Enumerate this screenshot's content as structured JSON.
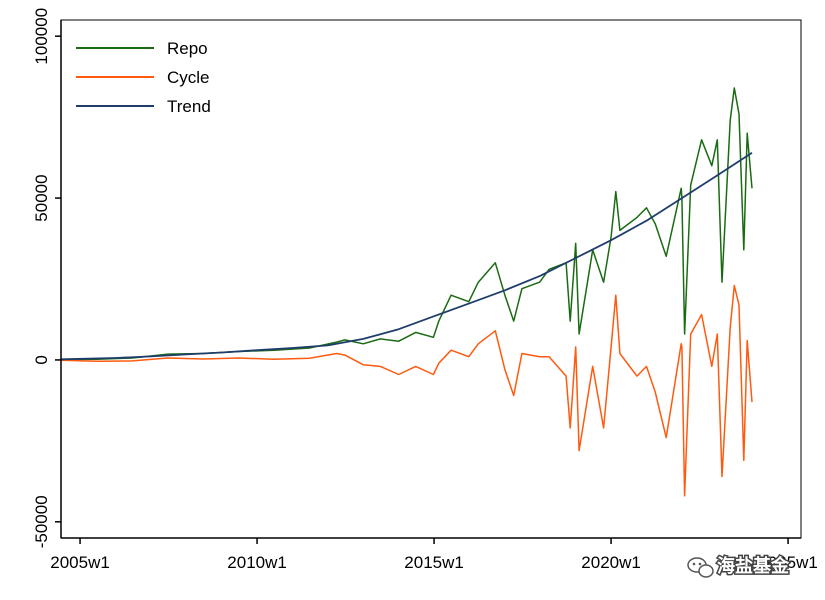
{
  "chart_data": {
    "type": "line",
    "title": "",
    "xlabel": "",
    "ylabel": "",
    "x_ticks": [
      "2005w1",
      "2010w1",
      "2015w1",
      "2020w1",
      "2025w1"
    ],
    "y_ticks": [
      "-50000",
      "0",
      "50000",
      "100000"
    ],
    "xlim": [
      "2004w25",
      "2025w20"
    ],
    "ylim": [
      -55000,
      105000
    ],
    "grid": false,
    "legend_position": "top-left",
    "series": [
      {
        "name": "Repo",
        "color": "#1a6b12",
        "points": [
          [
            "2004w25",
            100
          ],
          [
            "2005w26",
            200
          ],
          [
            "2006w26",
            600
          ],
          [
            "2007w26",
            1800
          ],
          [
            "2008w26",
            2000
          ],
          [
            "2009w26",
            2600
          ],
          [
            "2010w26",
            3000
          ],
          [
            "2011w26",
            3700
          ],
          [
            "2012w14",
            5500
          ],
          [
            "2012w26",
            6200
          ],
          [
            "2013w1",
            5000
          ],
          [
            "2013w26",
            6500
          ],
          [
            "2014w1",
            5800
          ],
          [
            "2014w26",
            8500
          ],
          [
            "2014w52",
            7000
          ],
          [
            "2015w8",
            12000
          ],
          [
            "2015w26",
            20000
          ],
          [
            "2015w52",
            18000
          ],
          [
            "2016w14",
            24000
          ],
          [
            "2016w39",
            30000
          ],
          [
            "2017w1",
            20000
          ],
          [
            "2017w14",
            12000
          ],
          [
            "2017w26",
            22000
          ],
          [
            "2017w52",
            24000
          ],
          [
            "2018w14",
            28000
          ],
          [
            "2018w39",
            30000
          ],
          [
            "2018w45",
            12000
          ],
          [
            "2019w1",
            36000
          ],
          [
            "2019w6",
            8000
          ],
          [
            "2019w26",
            34000
          ],
          [
            "2019w42",
            24000
          ],
          [
            "2020w1",
            38000
          ],
          [
            "2020w8",
            52000
          ],
          [
            "2020w14",
            40000
          ],
          [
            "2020w39",
            44000
          ],
          [
            "2021w1",
            47000
          ],
          [
            "2021w14",
            42000
          ],
          [
            "2021w30",
            32000
          ],
          [
            "2021w52",
            53000
          ],
          [
            "2022w1",
            50000
          ],
          [
            "2022w5",
            8000
          ],
          [
            "2022w14",
            54000
          ],
          [
            "2022w30",
            68000
          ],
          [
            "2022w45",
            60000
          ],
          [
            "2023w1",
            68000
          ],
          [
            "2023w8",
            24000
          ],
          [
            "2023w20",
            74000
          ],
          [
            "2023w26",
            84000
          ],
          [
            "2023w33",
            76000
          ],
          [
            "2023w40",
            34000
          ],
          [
            "2023w45",
            70000
          ],
          [
            "2023w52",
            53000
          ]
        ]
      },
      {
        "name": "Cycle",
        "color": "#ff5a0f",
        "points": [
          [
            "2004w25",
            -100
          ],
          [
            "2005w26",
            -400
          ],
          [
            "2006w26",
            -300
          ],
          [
            "2007w26",
            600
          ],
          [
            "2008w26",
            300
          ],
          [
            "2009w26",
            600
          ],
          [
            "2010w26",
            200
          ],
          [
            "2011w26",
            500
          ],
          [
            "2012w14",
            2000
          ],
          [
            "2012w26",
            1500
          ],
          [
            "2013w1",
            -1500
          ],
          [
            "2013w26",
            -2000
          ],
          [
            "2014w1",
            -4500
          ],
          [
            "2014w26",
            -2000
          ],
          [
            "2014w52",
            -4500
          ],
          [
            "2015w8",
            -1000
          ],
          [
            "2015w26",
            3000
          ],
          [
            "2015w52",
            1000
          ],
          [
            "2016w14",
            5000
          ],
          [
            "2016w39",
            9000
          ],
          [
            "2017w1",
            -3000
          ],
          [
            "2017w14",
            -11000
          ],
          [
            "2017w26",
            2000
          ],
          [
            "2017w52",
            1000
          ],
          [
            "2018w14",
            1000
          ],
          [
            "2018w39",
            -5000
          ],
          [
            "2018w45",
            -21000
          ],
          [
            "2019w1",
            4000
          ],
          [
            "2019w6",
            -28000
          ],
          [
            "2019w26",
            -2000
          ],
          [
            "2019w42",
            -21000
          ],
          [
            "2020w1",
            4000
          ],
          [
            "2020w8",
            20000
          ],
          [
            "2020w14",
            2000
          ],
          [
            "2020w39",
            -5000
          ],
          [
            "2021w1",
            -2000
          ],
          [
            "2021w14",
            -10000
          ],
          [
            "2021w30",
            -24000
          ],
          [
            "2021w52",
            5000
          ],
          [
            "2022w1",
            4000
          ],
          [
            "2022w5",
            -42000
          ],
          [
            "2022w14",
            8000
          ],
          [
            "2022w30",
            14000
          ],
          [
            "2022w45",
            -2000
          ],
          [
            "2023w1",
            8000
          ],
          [
            "2023w8",
            -36000
          ],
          [
            "2023w20",
            10000
          ],
          [
            "2023w26",
            23000
          ],
          [
            "2023w33",
            17000
          ],
          [
            "2023w40",
            -31000
          ],
          [
            "2023w45",
            6000
          ],
          [
            "2023w52",
            -13000
          ]
        ]
      },
      {
        "name": "Trend",
        "color": "#1f3d6b",
        "points": [
          [
            "2004w25",
            200
          ],
          [
            "2006w1",
            600
          ],
          [
            "2007w1",
            1100
          ],
          [
            "2008w1",
            1700
          ],
          [
            "2009w1",
            2300
          ],
          [
            "2010w1",
            3000
          ],
          [
            "2011w1",
            3700
          ],
          [
            "2012w1",
            4500
          ],
          [
            "2013w1",
            6500
          ],
          [
            "2014w1",
            9500
          ],
          [
            "2015w1",
            13500
          ],
          [
            "2016w1",
            17500
          ],
          [
            "2017w1",
            21500
          ],
          [
            "2018w1",
            26000
          ],
          [
            "2019w1",
            31500
          ],
          [
            "2020w1",
            37000
          ],
          [
            "2021w1",
            43000
          ],
          [
            "2022w1",
            50000
          ],
          [
            "2023w1",
            57000
          ],
          [
            "2023w52",
            64000
          ]
        ]
      }
    ]
  },
  "watermark": {
    "icon": "wechat-icon",
    "text": "海盐基金"
  }
}
